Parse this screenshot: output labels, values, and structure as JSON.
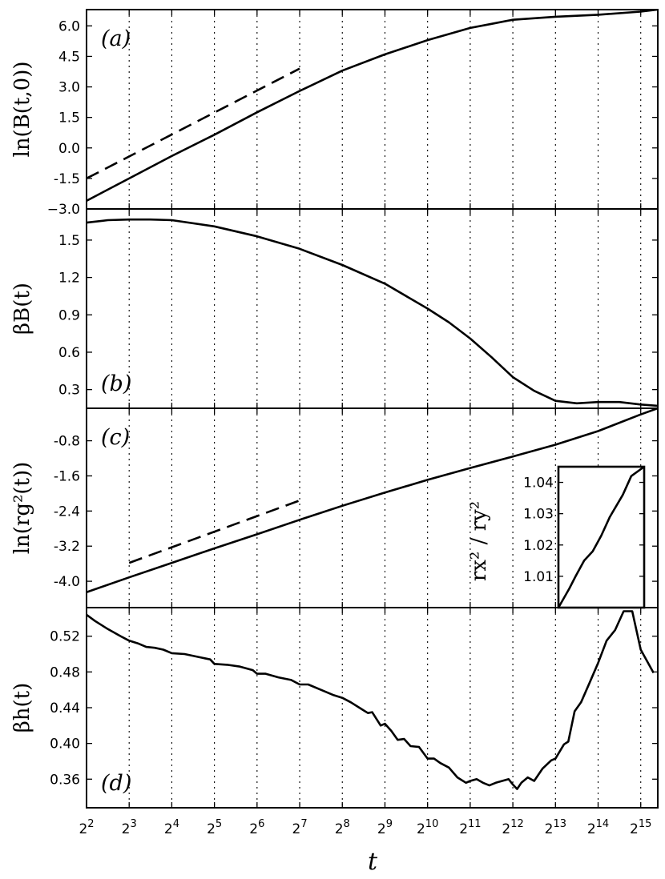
{
  "figure": {
    "x_label": "t"
  },
  "chart_data": [
    {
      "id": "a",
      "type": "line",
      "panel_label": "(a)",
      "ylabel": "ln(B(t,0))",
      "xscale": "log2",
      "xlim_log2": [
        2,
        15.4
      ],
      "ylim": [
        -3.0,
        6.8
      ],
      "yticks": [
        -3.0,
        -1.5,
        0.0,
        1.5,
        3.0,
        4.5,
        6.0
      ],
      "ytick_labels": [
        "−3.0",
        "-1.5",
        "0.0",
        "1.5",
        "3.0",
        "4.5",
        "6.0"
      ],
      "xticks_log2": [
        2,
        3,
        4,
        5,
        6,
        7,
        8,
        9,
        10,
        11,
        12,
        13,
        14,
        15
      ],
      "xtick_labels": [
        "2",
        "3",
        "4",
        "5",
        "6",
        "7",
        "8",
        "9",
        "10",
        "11",
        "12",
        "13",
        "14",
        "15"
      ],
      "grid": "vertical dotted",
      "series": [
        {
          "style": "solid",
          "x_log2": [
            2,
            3,
            4,
            5,
            6,
            7,
            8,
            9,
            10,
            11,
            11.5,
            12,
            13,
            14,
            15,
            15.4
          ],
          "y": [
            -2.6,
            -1.5,
            -0.4,
            0.65,
            1.75,
            2.8,
            3.8,
            4.6,
            5.3,
            5.9,
            6.1,
            6.3,
            6.45,
            6.55,
            6.7,
            6.8
          ]
        },
        {
          "style": "dashed",
          "x_log2": [
            2,
            7
          ],
          "y": [
            -1.5,
            3.9
          ]
        }
      ]
    },
    {
      "id": "b",
      "type": "line",
      "panel_label": "(b)",
      "ylabel": "βB(t)",
      "xscale": "log2",
      "xlim_log2": [
        2,
        15.4
      ],
      "ylim": [
        0.15,
        1.75
      ],
      "yticks": [
        0.3,
        0.6,
        0.9,
        1.2,
        1.5
      ],
      "ytick_labels": [
        "0.3",
        "0.6",
        "0.9",
        "1.2",
        "1.5"
      ],
      "grid": "vertical dotted",
      "series": [
        {
          "style": "solid",
          "x_log2": [
            2,
            2.5,
            3,
            3.5,
            4,
            5,
            6,
            7,
            8,
            9,
            10,
            10.5,
            11,
            11.5,
            12,
            12.5,
            13,
            13.5,
            14,
            14.5,
            15,
            15.4
          ],
          "y": [
            1.64,
            1.66,
            1.665,
            1.665,
            1.66,
            1.61,
            1.53,
            1.43,
            1.3,
            1.15,
            0.95,
            0.84,
            0.71,
            0.56,
            0.4,
            0.29,
            0.21,
            0.19,
            0.2,
            0.2,
            0.18,
            0.17
          ]
        }
      ]
    },
    {
      "id": "c",
      "type": "line",
      "panel_label": "(c)",
      "ylabel": "ln(rg²(t))",
      "xscale": "log2",
      "xlim_log2": [
        2,
        15.4
      ],
      "ylim": [
        -4.6,
        -0.06
      ],
      "yticks": [
        -4.0,
        -3.2,
        -2.4,
        -1.6,
        -0.8
      ],
      "ytick_labels": [
        "-4.0",
        "-3.2",
        "-2.4",
        "-1.6",
        "-0.8"
      ],
      "grid": "vertical dotted",
      "series": [
        {
          "style": "solid",
          "x_log2": [
            2,
            3,
            4,
            5,
            6,
            7,
            8,
            9,
            10,
            11,
            12,
            13,
            14,
            15,
            15.4
          ],
          "y": [
            -4.25,
            -3.91,
            -3.58,
            -3.25,
            -2.93,
            -2.6,
            -2.28,
            -1.98,
            -1.69,
            -1.42,
            -1.16,
            -0.89,
            -0.58,
            -0.2,
            -0.06
          ]
        },
        {
          "style": "dashed",
          "x_log2": [
            3,
            7
          ],
          "y": [
            -3.58,
            -2.16
          ]
        }
      ],
      "inset": {
        "type": "line",
        "ylabel": "rx² / ry²",
        "yticks": [
          1.01,
          1.02,
          1.03,
          1.04
        ],
        "ytick_labels": [
          "1.01",
          "1.02",
          "1.03",
          "1.04"
        ],
        "xlim_log2": [
          13,
          15
        ],
        "ylim": [
          1.0,
          1.045
        ],
        "series": [
          {
            "style": "solid",
            "x_log2": [
              13.0,
              13.25,
              13.4,
              13.6,
              13.8,
              14.0,
              14.2,
              14.5,
              14.7,
              15.0
            ],
            "y": [
              1.0,
              1.006,
              1.01,
              1.015,
              1.018,
              1.023,
              1.029,
              1.036,
              1.042,
              1.045
            ]
          }
        ]
      }
    },
    {
      "id": "d",
      "type": "line",
      "panel_label": "(d)",
      "ylabel": "βh(t)",
      "xscale": "log2",
      "xlim_log2": [
        2,
        15.4
      ],
      "ylim": [
        0.328,
        0.552
      ],
      "yticks": [
        0.36,
        0.4,
        0.44,
        0.48,
        0.52
      ],
      "ytick_labels": [
        "0.36",
        "0.40",
        "0.44",
        "0.48",
        "0.52"
      ],
      "grid": "vertical dotted",
      "series": [
        {
          "style": "solid",
          "x_log2": [
            2.0,
            2.2,
            2.5,
            2.8,
            3.0,
            3.2,
            3.4,
            3.6,
            3.8,
            4.0,
            4.3,
            4.6,
            4.9,
            5.0,
            5.3,
            5.6,
            5.9,
            6.0,
            6.2,
            6.5,
            6.8,
            7.0,
            7.2,
            7.5,
            7.8,
            8.0,
            8.2,
            8.4,
            8.6,
            8.7,
            8.9,
            9.0,
            9.15,
            9.3,
            9.45,
            9.6,
            9.8,
            10.0,
            10.15,
            10.3,
            10.5,
            10.7,
            10.9,
            11.0,
            11.15,
            11.3,
            11.45,
            11.6,
            11.75,
            11.9,
            12.0,
            12.1,
            12.2,
            12.35,
            12.5,
            12.7,
            12.9,
            13.0,
            13.2,
            13.3,
            13.45,
            13.6,
            13.8,
            14.0,
            14.2,
            14.4,
            14.6,
            14.8,
            15.0,
            15.15,
            15.3
          ],
          "y": [
            0.544,
            0.537,
            0.528,
            0.52,
            0.515,
            0.512,
            0.508,
            0.507,
            0.505,
            0.501,
            0.5,
            0.497,
            0.494,
            0.489,
            0.488,
            0.486,
            0.482,
            0.478,
            0.478,
            0.474,
            0.471,
            0.466,
            0.466,
            0.46,
            0.454,
            0.451,
            0.446,
            0.44,
            0.434,
            0.435,
            0.42,
            0.422,
            0.414,
            0.404,
            0.405,
            0.397,
            0.396,
            0.383,
            0.383,
            0.378,
            0.373,
            0.362,
            0.356,
            0.358,
            0.36,
            0.356,
            0.353,
            0.356,
            0.358,
            0.36,
            0.354,
            0.349,
            0.356,
            0.362,
            0.358,
            0.372,
            0.381,
            0.383,
            0.399,
            0.402,
            0.436,
            0.446,
            0.468,
            0.49,
            0.515,
            0.527,
            0.548,
            0.548,
            0.505,
            0.492,
            0.479
          ]
        }
      ]
    }
  ]
}
